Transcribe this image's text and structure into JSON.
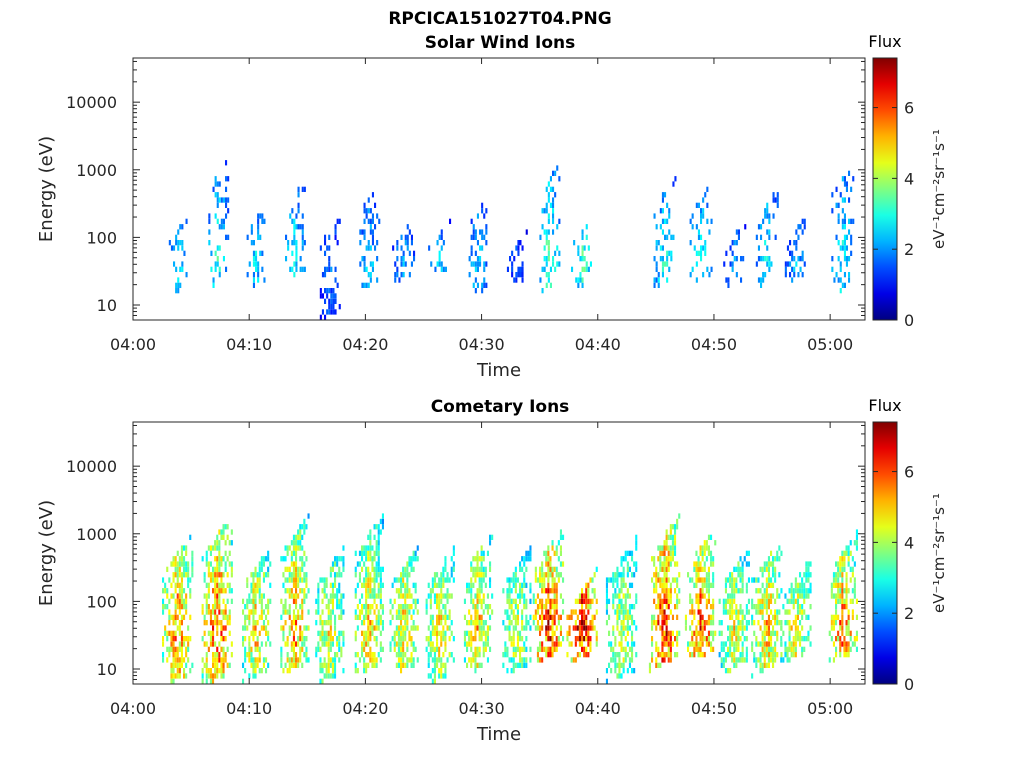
{
  "figure": {
    "title": "RPCICA151027T04.PNG"
  },
  "colorbar": {
    "title": "Flux",
    "ticks": [
      "0",
      "2",
      "4",
      "6"
    ],
    "unit_label": "eV⁻¹cm⁻²sr⁻¹s⁻¹",
    "range": [
      0,
      7.4
    ],
    "colormap": "jet"
  },
  "chart_data": [
    {
      "type": "heatmap",
      "title": "Solar Wind Ions",
      "xlabel": "Time",
      "ylabel": "Energy (eV)",
      "x_unit": "minutes after 04:00",
      "xlim": [
        0,
        63
      ],
      "ylim": [
        6,
        45000
      ],
      "yscale": "log",
      "x_ticks": [
        "04:00",
        "04:10",
        "04:20",
        "04:30",
        "04:40",
        "04:50",
        "05:00"
      ],
      "y_ticks": [
        "10",
        "100",
        "1000",
        "10000"
      ],
      "grid": false,
      "bursts": [
        {
          "t": 3.8,
          "emin": 15,
          "emax": 120,
          "peak": 2.6
        },
        {
          "t": 7.2,
          "emin": 20,
          "emax": 800,
          "peak": 3.0
        },
        {
          "t": 10.5,
          "emin": 20,
          "emax": 180,
          "peak": 2.6
        },
        {
          "t": 13.8,
          "emin": 25,
          "emax": 400,
          "peak": 2.8
        },
        {
          "t": 16.8,
          "emin": 7,
          "emax": 120,
          "peak": 1.8
        },
        {
          "t": 20.2,
          "emin": 20,
          "emax": 350,
          "peak": 2.4
        },
        {
          "t": 23.2,
          "emin": 25,
          "emax": 120,
          "peak": 2.2
        },
        {
          "t": 26.3,
          "emin": 30,
          "emax": 120,
          "peak": 2.4
        },
        {
          "t": 29.6,
          "emin": 15,
          "emax": 250,
          "peak": 2.4
        },
        {
          "t": 32.9,
          "emin": 20,
          "emax": 70,
          "peak": 1.6
        },
        {
          "t": 35.7,
          "emin": 18,
          "emax": 700,
          "peak": 3.3
        },
        {
          "t": 38.6,
          "emin": 20,
          "emax": 120,
          "peak": 3.4
        },
        {
          "t": 45.7,
          "emin": 20,
          "emax": 500,
          "peak": 2.9
        },
        {
          "t": 48.8,
          "emin": 25,
          "emax": 350,
          "peak": 2.9
        },
        {
          "t": 51.7,
          "emin": 20,
          "emax": 100,
          "peak": 2.0
        },
        {
          "t": 54.5,
          "emin": 20,
          "emax": 300,
          "peak": 2.8
        },
        {
          "t": 57.0,
          "emin": 25,
          "emax": 120,
          "peak": 2.2
        },
        {
          "t": 61.0,
          "emin": 15,
          "emax": 700,
          "peak": 2.8
        }
      ]
    },
    {
      "type": "heatmap",
      "title": "Cometary Ions",
      "xlabel": "Time",
      "ylabel": "Energy (eV)",
      "x_unit": "minutes after 04:00",
      "xlim": [
        0,
        63
      ],
      "ylim": [
        6,
        45000
      ],
      "yscale": "log",
      "x_ticks": [
        "04:00",
        "04:10",
        "04:20",
        "04:30",
        "04:40",
        "04:50",
        "05:00"
      ],
      "y_ticks": [
        "10",
        "100",
        "1000",
        "10000"
      ],
      "grid": false,
      "bursts": [
        {
          "t": 3.8,
          "emin": 7,
          "emax": 500,
          "peak": 5.6
        },
        {
          "t": 7.2,
          "emin": 7,
          "emax": 900,
          "peak": 5.9
        },
        {
          "t": 10.5,
          "emin": 8,
          "emax": 300,
          "peak": 5.0
        },
        {
          "t": 13.8,
          "emin": 10,
          "emax": 900,
          "peak": 5.4
        },
        {
          "t": 16.8,
          "emin": 7,
          "emax": 300,
          "peak": 4.6
        },
        {
          "t": 20.2,
          "emin": 10,
          "emax": 900,
          "peak": 5.0
        },
        {
          "t": 23.2,
          "emin": 10,
          "emax": 300,
          "peak": 5.0
        },
        {
          "t": 26.3,
          "emin": 7,
          "emax": 300,
          "peak": 4.8
        },
        {
          "t": 29.6,
          "emin": 10,
          "emax": 500,
          "peak": 5.0
        },
        {
          "t": 32.9,
          "emin": 10,
          "emax": 300,
          "peak": 4.4
        },
        {
          "t": 35.7,
          "emin": 15,
          "emax": 600,
          "peak": 6.4
        },
        {
          "t": 38.6,
          "emin": 15,
          "emax": 140,
          "peak": 6.8
        },
        {
          "t": 42.0,
          "emin": 8,
          "emax": 400,
          "peak": 4.4
        },
        {
          "t": 45.7,
          "emin": 12,
          "emax": 900,
          "peak": 6.4
        },
        {
          "t": 48.8,
          "emin": 15,
          "emax": 600,
          "peak": 6.0
        },
        {
          "t": 51.7,
          "emin": 10,
          "emax": 300,
          "peak": 4.6
        },
        {
          "t": 54.5,
          "emin": 10,
          "emax": 400,
          "peak": 5.2
        },
        {
          "t": 57.0,
          "emin": 15,
          "emax": 200,
          "peak": 4.8
        },
        {
          "t": 61.0,
          "emin": 15,
          "emax": 500,
          "peak": 5.6
        }
      ]
    }
  ]
}
